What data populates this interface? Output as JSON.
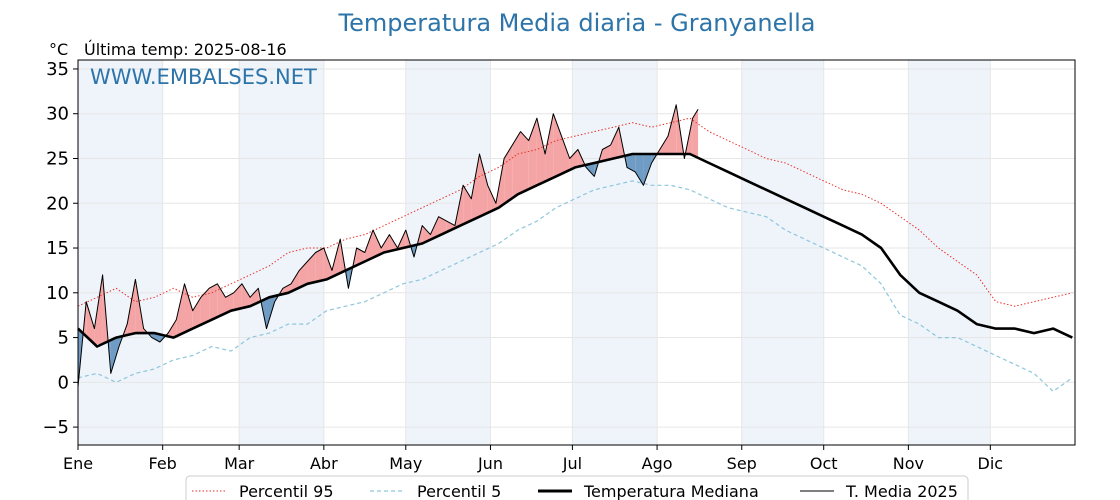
{
  "title": "Temperatura Media diaria - Granyanella",
  "unit_label": "°C",
  "last_temp_label": "Última temp: 2025-08-16",
  "watermark": "WWW.EMBALSES.NET",
  "colors": {
    "title": "#2d74a9",
    "p95": "#e8322b",
    "p5": "#8ec6dc",
    "median": "#000000",
    "media2025": "#000000",
    "above_fill": "#f4a4a4",
    "below_fill": "#6f9cc4",
    "shade": "#eef4fa"
  },
  "chart_data": {
    "type": "line",
    "title": "Temperatura Media diaria - Granyanella",
    "ylabel": "°C",
    "ylim": [
      -7,
      36
    ],
    "yticks": [
      -5,
      0,
      5,
      10,
      15,
      20,
      25,
      30,
      35
    ],
    "ytick_labels": [
      "−5",
      "0",
      "5",
      "10",
      "15",
      "20",
      "25",
      "30",
      "35"
    ],
    "xlim_day": [
      1,
      366
    ],
    "months": [
      "Ene",
      "Feb",
      "Mar",
      "Abr",
      "May",
      "Jun",
      "Jul",
      "Ago",
      "Sep",
      "Oct",
      "Nov",
      "Dic"
    ],
    "month_start_day": [
      1,
      32,
      60,
      91,
      121,
      152,
      182,
      213,
      244,
      274,
      305,
      335
    ],
    "grid": true,
    "legend_position": "bottom",
    "series": [
      {
        "name": "Percentil 95",
        "style": "dotted-red",
        "x": [
          1,
          8,
          15,
          22,
          29,
          36,
          43,
          50,
          57,
          64,
          71,
          78,
          85,
          92,
          99,
          106,
          113,
          120,
          127,
          134,
          141,
          148,
          155,
          162,
          169,
          176,
          183,
          190,
          197,
          204,
          211,
          218,
          225,
          232,
          239,
          246,
          253,
          260,
          267,
          274,
          281,
          288,
          295,
          302,
          309,
          316,
          323,
          330,
          337,
          344,
          351,
          358,
          365
        ],
        "y": [
          8.5,
          9.5,
          10.5,
          9.0,
          9.5,
          10.5,
          9.5,
          10.0,
          11.0,
          12.0,
          13.0,
          14.5,
          15.0,
          15.0,
          16.0,
          16.5,
          17.5,
          18.5,
          19.5,
          20.5,
          21.5,
          23.0,
          24.0,
          25.5,
          26.0,
          27.0,
          27.5,
          28.0,
          28.5,
          29.0,
          28.5,
          29.0,
          29.5,
          28.0,
          27.0,
          26.0,
          25.0,
          24.5,
          23.5,
          22.5,
          21.5,
          21.0,
          20.0,
          18.5,
          17.0,
          15.0,
          13.5,
          12.0,
          9.0,
          8.5,
          9.0,
          9.5,
          10.0
        ]
      },
      {
        "name": "Percentil 5",
        "style": "dashed-lightblue",
        "x": [
          1,
          8,
          15,
          22,
          29,
          36,
          43,
          50,
          57,
          64,
          71,
          78,
          85,
          92,
          99,
          106,
          113,
          120,
          127,
          134,
          141,
          148,
          155,
          162,
          169,
          176,
          183,
          190,
          197,
          204,
          211,
          218,
          225,
          232,
          239,
          246,
          253,
          260,
          267,
          274,
          281,
          288,
          295,
          302,
          309,
          316,
          323,
          330,
          337,
          344,
          351,
          358,
          365
        ],
        "y": [
          0.5,
          1.0,
          0.0,
          1.0,
          1.5,
          2.5,
          3.0,
          4.0,
          3.5,
          5.0,
          5.5,
          6.5,
          6.5,
          8.0,
          8.5,
          9.0,
          10.0,
          11.0,
          11.5,
          12.5,
          13.5,
          14.5,
          15.5,
          17.0,
          18.0,
          19.5,
          20.5,
          21.5,
          22.0,
          22.5,
          22.0,
          22.0,
          21.5,
          20.5,
          19.5,
          19.0,
          18.5,
          17.0,
          16.0,
          15.0,
          14.0,
          13.0,
          11.0,
          7.5,
          6.5,
          5.0,
          5.0,
          4.0,
          3.0,
          2.0,
          1.0,
          -1.0,
          0.5
        ]
      },
      {
        "name": "Temperatura Mediana",
        "style": "thick-black",
        "x": [
          1,
          8,
          15,
          22,
          29,
          36,
          43,
          50,
          57,
          64,
          71,
          78,
          85,
          92,
          99,
          106,
          113,
          120,
          127,
          134,
          141,
          148,
          155,
          162,
          169,
          176,
          183,
          190,
          197,
          204,
          211,
          218,
          225,
          232,
          239,
          246,
          253,
          260,
          267,
          274,
          281,
          288,
          295,
          302,
          309,
          316,
          323,
          330,
          337,
          344,
          351,
          358,
          365
        ],
        "y": [
          6.0,
          4.0,
          5.0,
          5.5,
          5.5,
          5.0,
          6.0,
          7.0,
          8.0,
          8.5,
          9.5,
          10.0,
          11.0,
          11.5,
          12.5,
          13.5,
          14.5,
          15.0,
          15.5,
          16.5,
          17.5,
          18.5,
          19.5,
          21.0,
          22.0,
          23.0,
          24.0,
          24.5,
          25.0,
          25.5,
          25.5,
          25.5,
          25.5,
          24.5,
          23.5,
          22.5,
          21.5,
          20.5,
          19.5,
          18.5,
          17.5,
          16.5,
          15.0,
          12.0,
          10.0,
          9.0,
          8.0,
          6.5,
          6.0,
          6.0,
          5.5,
          6.0,
          5.0
        ]
      },
      {
        "name": "T. Media 2025",
        "style": "thin-black",
        "x": [
          1,
          4,
          7,
          10,
          13,
          16,
          19,
          22,
          25,
          28,
          31,
          34,
          37,
          40,
          43,
          46,
          49,
          52,
          55,
          58,
          61,
          64,
          67,
          70,
          73,
          76,
          79,
          82,
          85,
          88,
          91,
          94,
          97,
          100,
          103,
          106,
          109,
          112,
          115,
          118,
          121,
          124,
          127,
          130,
          133,
          136,
          139,
          142,
          145,
          148,
          151,
          154,
          157,
          160,
          163,
          166,
          169,
          172,
          175,
          178,
          181,
          184,
          187,
          190,
          193,
          196,
          199,
          202,
          205,
          208,
          211,
          214,
          217,
          220,
          223,
          226,
          228
        ],
        "y": [
          -0.5,
          9.0,
          6.0,
          12.0,
          1.0,
          4.0,
          6.5,
          11.5,
          6.0,
          5.0,
          4.5,
          5.5,
          7.0,
          11.0,
          8.0,
          9.5,
          10.5,
          11.0,
          9.5,
          10.0,
          11.0,
          9.5,
          10.5,
          6.0,
          9.0,
          10.5,
          11.0,
          12.5,
          13.5,
          14.5,
          15.0,
          12.5,
          16.0,
          10.5,
          15.0,
          14.5,
          17.0,
          15.0,
          16.5,
          15.0,
          17.0,
          14.0,
          17.5,
          16.5,
          18.5,
          18.0,
          17.5,
          22.0,
          20.5,
          25.5,
          22.0,
          20.0,
          25.0,
          26.5,
          28.0,
          27.0,
          29.5,
          25.5,
          30.0,
          27.5,
          25.0,
          26.0,
          24.0,
          23.0,
          26.0,
          26.5,
          28.5,
          24.0,
          23.5,
          22.0,
          24.5,
          26.0,
          27.5,
          31.0,
          25.0,
          29.5,
          30.5
        ]
      }
    ]
  }
}
